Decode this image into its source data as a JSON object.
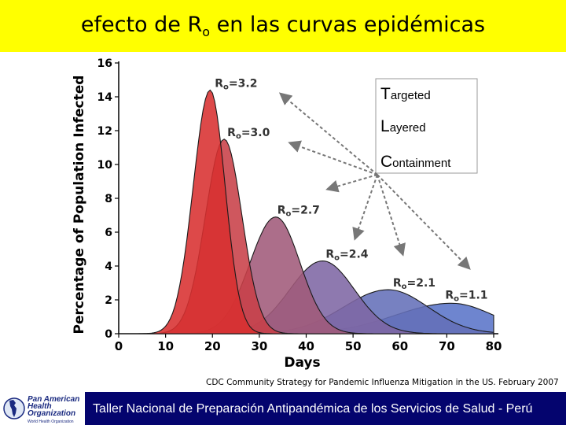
{
  "title": {
    "text": "efecto de R",
    "subscript": "o",
    "rest": " en las curvas epidémicas"
  },
  "credit": "CDC Community Strategy for Pandemic Influenza Mitigation in the US. February 2007",
  "footer": {
    "text": "Taller Nacional de Preparación Antipandémica de los Servicios de Salud - Perú"
  },
  "logo": {
    "line1": "Pan American",
    "line2": "Health",
    "line3": "Organization",
    "tagline": "World Health Organization"
  },
  "strategies": [
    {
      "initial": "T",
      "rest": "argeted"
    },
    {
      "initial": "L",
      "rest": "ayered"
    },
    {
      "initial": "C",
      "rest": "ontainment"
    }
  ],
  "colors": {
    "title_band": "#ffff00",
    "footer_bar": "#04046e",
    "curve_high": "#d43232",
    "curve_low": "#5a74c8",
    "arrow": "#777777"
  },
  "chart_data": {
    "type": "area",
    "xlabel": "Days",
    "ylabel": "Percentage of Population Infected",
    "xlim": [
      0,
      80
    ],
    "ylim": [
      0,
      16
    ],
    "xticks": [
      0,
      10,
      20,
      30,
      40,
      50,
      60,
      70,
      80
    ],
    "yticks": [
      0,
      2,
      4,
      6,
      8,
      10,
      12,
      14,
      16
    ],
    "grid": false,
    "series": [
      {
        "name": "Ro=3.2",
        "label_prefix": "R",
        "label_sub": "o",
        "label_value": "=3.2",
        "peak_day": 19.5,
        "peak": 14.4,
        "width_left": 3.6,
        "width_right": 3.2,
        "color": "#d83030"
      },
      {
        "name": "Ro=3.0",
        "label_prefix": "R",
        "label_sub": "o",
        "label_value": "=3.0",
        "peak_day": 22.5,
        "peak": 11.5,
        "width_left": 4.0,
        "width_right": 3.8,
        "color": "#c84048"
      },
      {
        "name": "Ro=2.7",
        "label_prefix": "R",
        "label_sub": "o",
        "label_value": "=2.7",
        "peak_day": 33.5,
        "peak": 6.9,
        "width_left": 5.5,
        "width_right": 5.2,
        "color": "#a05a7a"
      },
      {
        "name": "Ro=2.4",
        "label_prefix": "R",
        "label_sub": "o",
        "label_value": "=2.4",
        "peak_day": 43.5,
        "peak": 4.3,
        "width_left": 7.0,
        "width_right": 6.8,
        "color": "#7e66a4"
      },
      {
        "name": "Ro=2.1",
        "label_prefix": "R",
        "label_sub": "o",
        "label_value": "=2.1",
        "peak_day": 57.5,
        "peak": 2.6,
        "width_left": 9.5,
        "width_right": 8.5,
        "color": "#6470b8"
      },
      {
        "name": "Ro=1.1",
        "label_prefix": "R",
        "label_sub": "o",
        "label_value": "=1.1",
        "peak_day": 71.0,
        "peak": 1.8,
        "width_left": 12.0,
        "width_right": 9.0,
        "color": "#5a74c8"
      }
    ]
  }
}
